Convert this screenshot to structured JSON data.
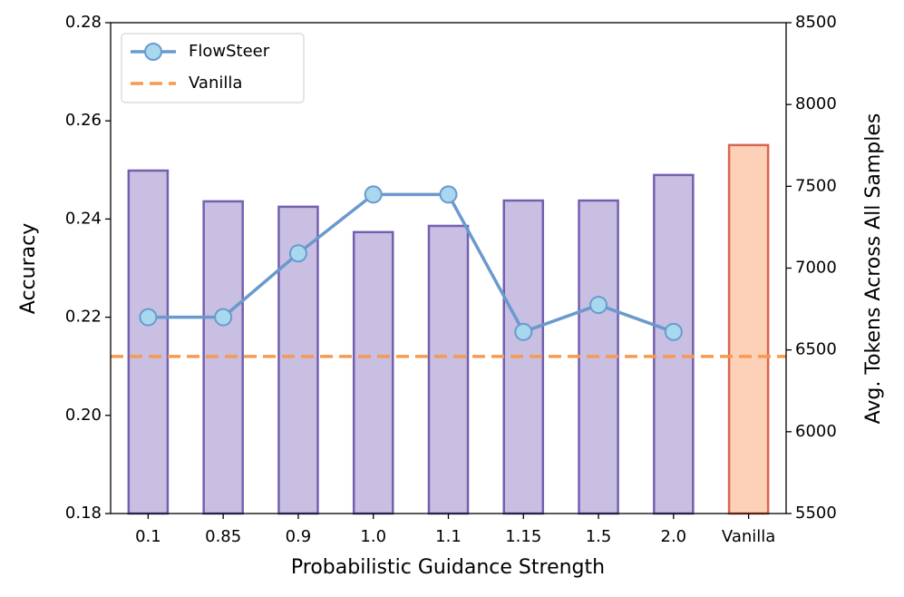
{
  "chart_data": {
    "type": "bar",
    "categories": [
      "0.1",
      "0.85",
      "0.9",
      "1.0",
      "1.1",
      "1.15",
      "1.5",
      "2.0",
      "Vanilla"
    ],
    "xlabel": "Probabilistic Guidance Strength",
    "ylabel": "Accuracy",
    "y2label": "Avg. Tokens Across All Samples",
    "ylim": [
      0.18,
      0.28
    ],
    "yticks": [
      0.18,
      {
        "value": 0.2,
        "label": "0.20"
      },
      0.22,
      0.24,
      0.26,
      0.28
    ],
    "y2lim": [
      5500,
      8500
    ],
    "y2ticks": [
      5500,
      6000,
      6500,
      7000,
      7500,
      8000,
      8500
    ],
    "bars": {
      "axis": "y2",
      "values": [
        7596,
        7408,
        7375,
        7220,
        7258,
        7413,
        7413,
        7569,
        7752
      ],
      "colors": [
        "#c8bfe3",
        "#c8bfe3",
        "#c8bfe3",
        "#c8bfe3",
        "#c8bfe3",
        "#c8bfe3",
        "#c8bfe3",
        "#c8bfe3",
        "#fdd0b8"
      ],
      "edge_colors": [
        "#7560b0",
        "#7560b0",
        "#7560b0",
        "#7560b0",
        "#7560b0",
        "#7560b0",
        "#7560b0",
        "#7560b0",
        "#d9654f"
      ]
    },
    "series": [
      {
        "name": "FlowSteer",
        "color": "#6a9acd",
        "marker_color": "#a8d8ee",
        "axis": "y",
        "values": [
          0.22,
          0.22,
          0.233,
          0.245,
          0.245,
          0.217,
          0.2225,
          0.217,
          null
        ]
      }
    ],
    "reference_lines": [
      {
        "name": "Vanilla",
        "value": 0.212,
        "color": "#f79a4f",
        "axis": "y"
      }
    ],
    "legend": "upper left"
  }
}
